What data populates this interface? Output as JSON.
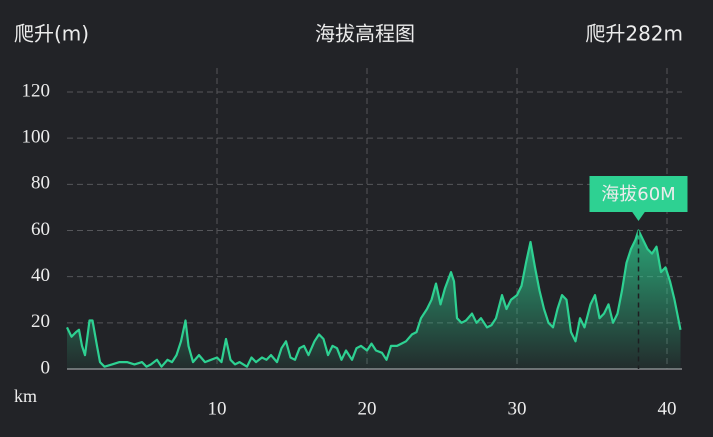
{
  "chart_data": {
    "type": "area",
    "title": "海拔高程图",
    "y_axis_label": "爬升(m)",
    "summary": "爬升282m",
    "x_axis_label": "km",
    "annotation": "海拔60M",
    "color": "#2ed192",
    "grid": true,
    "xlim": [
      0,
      41
    ],
    "ylim": [
      0,
      120
    ],
    "xticks": [
      10,
      20,
      30,
      40
    ],
    "yticks": [
      0,
      20,
      40,
      60,
      80,
      100,
      120
    ],
    "x": [
      0,
      0.3,
      0.6,
      0.8,
      1.0,
      1.2,
      1.5,
      1.7,
      2.0,
      2.2,
      2.5,
      3.0,
      3.5,
      4.0,
      4.5,
      5.0,
      5.3,
      5.6,
      6.0,
      6.3,
      6.7,
      7.0,
      7.3,
      7.6,
      7.9,
      8.1,
      8.4,
      8.8,
      9.2,
      9.6,
      10.0,
      10.3,
      10.6,
      10.9,
      11.2,
      11.5,
      12.0,
      12.3,
      12.6,
      13.0,
      13.3,
      13.6,
      14.0,
      14.3,
      14.6,
      14.9,
      15.2,
      15.5,
      15.8,
      16.1,
      16.5,
      16.8,
      17.1,
      17.4,
      17.7,
      18.0,
      18.3,
      18.6,
      19.0,
      19.3,
      19.6,
      20.0,
      20.3,
      20.6,
      21.0,
      21.3,
      21.6,
      22.0,
      22.3,
      22.6,
      23.0,
      23.3,
      23.6,
      24.0,
      24.3,
      24.6,
      24.9,
      25.2,
      25.6,
      25.8,
      26.0,
      26.3,
      26.6,
      27.0,
      27.3,
      27.6,
      28.0,
      28.3,
      28.6,
      29.0,
      29.3,
      29.6,
      30.0,
      30.3,
      30.6,
      30.9,
      31.2,
      31.5,
      31.8,
      32.1,
      32.4,
      32.7,
      33.0,
      33.3,
      33.6,
      33.9,
      34.2,
      34.5,
      34.9,
      35.2,
      35.5,
      35.8,
      36.1,
      36.4,
      36.7,
      37.0,
      37.3,
      37.6,
      37.9,
      38.1,
      38.4,
      38.7,
      39.0,
      39.3,
      39.6,
      39.9,
      40.2,
      40.5,
      40.9
    ],
    "values": [
      18,
      14,
      16,
      17,
      10,
      6,
      21,
      21,
      10,
      3,
      1,
      2,
      3,
      3,
      2,
      3,
      1,
      2,
      4,
      1,
      4,
      3,
      6,
      12,
      21,
      10,
      3,
      6,
      3,
      4,
      5,
      3,
      13,
      4,
      2,
      3,
      1,
      5,
      3,
      5,
      4,
      6,
      3,
      9,
      12,
      5,
      4,
      9,
      10,
      6,
      12,
      15,
      13,
      6,
      10,
      9,
      4,
      8,
      4,
      9,
      10,
      8,
      11,
      8,
      7,
      4,
      10,
      10,
      11,
      12,
      15,
      16,
      22,
      26,
      30,
      37,
      28,
      35,
      42,
      38,
      22,
      20,
      21,
      24,
      20,
      22,
      18,
      19,
      22,
      32,
      26,
      30,
      32,
      36,
      46,
      55,
      44,
      34,
      26,
      20,
      18,
      26,
      32,
      30,
      16,
      12,
      22,
      18,
      28,
      32,
      22,
      24,
      28,
      20,
      24,
      34,
      46,
      52,
      56,
      60,
      56,
      52,
      50,
      53,
      42,
      44,
      38,
      30,
      17
    ]
  }
}
